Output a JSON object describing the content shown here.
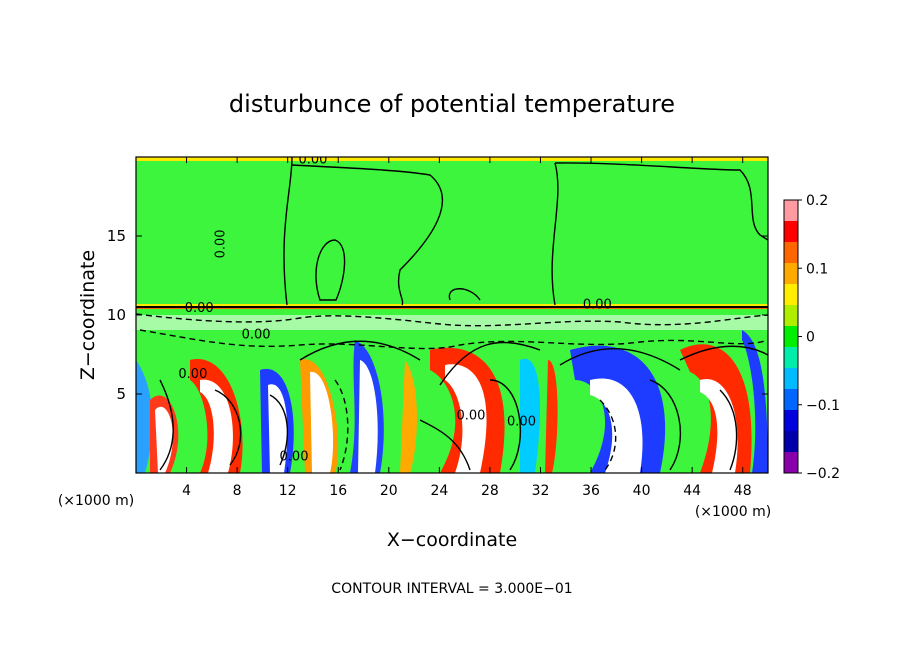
{
  "chart_data": {
    "type": "heatmap",
    "title": "disturbunce of potential temperature",
    "xlabel": "X−coordinate",
    "ylabel": "Z−coordinate",
    "x_unit": "(×1000 m)",
    "y_unit": "(×1000 m)",
    "xlim": [
      0,
      50
    ],
    "ylim": [
      0,
      20
    ],
    "xticks": [
      4,
      8,
      12,
      16,
      20,
      24,
      28,
      32,
      36,
      40,
      44,
      48
    ],
    "yticks": [
      5,
      10,
      15
    ],
    "colorbar": {
      "ticks": [
        {
          "value": 0.2,
          "label": "0.2"
        },
        {
          "value": 0.1,
          "label": "0.1"
        },
        {
          "value": 0,
          "label": "0"
        },
        {
          "value": -0.1,
          "label": "−0.1"
        },
        {
          "value": -0.2,
          "label": "−0.2"
        }
      ],
      "colors": [
        "#ff9aa0",
        "#ff0000",
        "#ff6600",
        "#ffaa00",
        "#ffee00",
        "#b0ee00",
        "#00ee00",
        "#00eeaa",
        "#00bbff",
        "#0066ff",
        "#0000dd",
        "#0000aa",
        "#8800aa"
      ]
    },
    "contour_labels": [
      {
        "x": 14,
        "y": 19.6,
        "text": "0.00"
      },
      {
        "x": 7,
        "y": 14.5,
        "text": "0.00"
      },
      {
        "x": 36.5,
        "y": 10.4,
        "text": "0.00"
      },
      {
        "x": 5,
        "y": 10.2,
        "text": "0.00"
      },
      {
        "x": 4.5,
        "y": 6.0,
        "text": "0.00"
      },
      {
        "x": 9.5,
        "y": 8.5,
        "text": "0.00"
      },
      {
        "x": 12.5,
        "y": 0.8,
        "text": "0.00"
      },
      {
        "x": 26.5,
        "y": 3.4,
        "text": "0.00"
      },
      {
        "x": 30.5,
        "y": 3.0,
        "text": "0.00"
      }
    ],
    "contour_interval": "CONTOUR INTERVAL = 3.000E−01"
  }
}
